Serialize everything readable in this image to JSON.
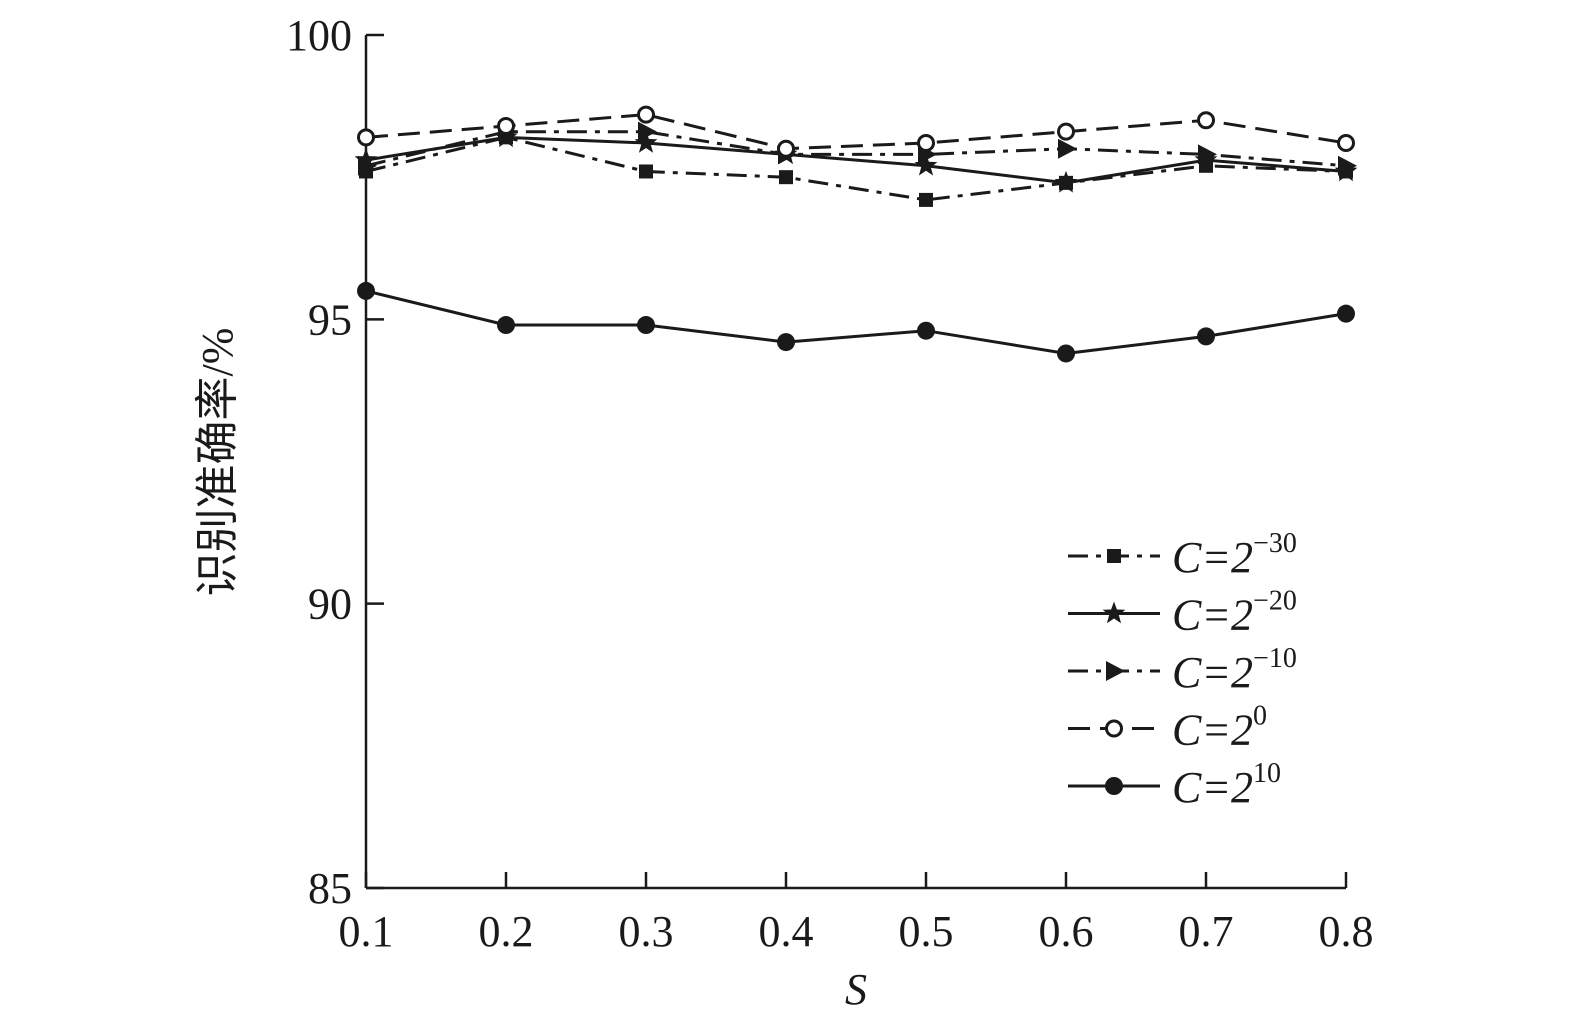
{
  "chart_data": {
    "type": "line",
    "xlabel": "S",
    "ylabel": "识别准确率/%",
    "x": [
      0.1,
      0.2,
      0.3,
      0.4,
      0.5,
      0.6,
      0.7,
      0.8
    ],
    "x_tick_labels": [
      "0.1",
      "0.2",
      "0.3",
      "0.4",
      "0.5",
      "0.6",
      "0.7",
      "0.8"
    ],
    "ylim": [
      85,
      100
    ],
    "y_ticks": [
      85,
      90,
      95,
      100
    ],
    "y_tick_labels": [
      "85",
      "90",
      "95",
      "100"
    ],
    "grid": false,
    "legend_position": "lower-right",
    "series": [
      {
        "name": "C=2^-30",
        "legend_base": "C=2",
        "legend_exp": "−30",
        "marker": "square",
        "dash": "dash-dot",
        "values": [
          97.6,
          98.2,
          97.6,
          97.5,
          97.1,
          97.4,
          97.7,
          97.6
        ]
      },
      {
        "name": "C=2^-20",
        "legend_base": "C=2",
        "legend_exp": "−20",
        "marker": "star",
        "dash": "solid",
        "values": [
          97.8,
          98.2,
          98.1,
          97.9,
          97.7,
          97.4,
          97.8,
          97.6
        ]
      },
      {
        "name": "C=2^-10",
        "legend_base": "C=2",
        "legend_exp": "−10",
        "marker": "triangle-right",
        "dash": "dash-dot",
        "values": [
          97.7,
          98.3,
          98.3,
          97.9,
          97.9,
          98.0,
          97.9,
          97.7
        ]
      },
      {
        "name": "C=2^0",
        "legend_base": "C=2",
        "legend_exp": "0",
        "marker": "circle-open",
        "dash": "dashed",
        "values": [
          98.2,
          98.4,
          98.6,
          98.0,
          98.1,
          98.3,
          98.5,
          98.1
        ]
      },
      {
        "name": "C=2^10",
        "legend_base": "C=2",
        "legend_exp": "10",
        "marker": "circle-filled",
        "dash": "solid",
        "values": [
          95.5,
          94.9,
          94.9,
          94.6,
          94.8,
          94.4,
          94.7,
          95.1
        ]
      }
    ],
    "colors": {
      "ink": "#1a1a1a",
      "background": "#ffffff"
    }
  }
}
